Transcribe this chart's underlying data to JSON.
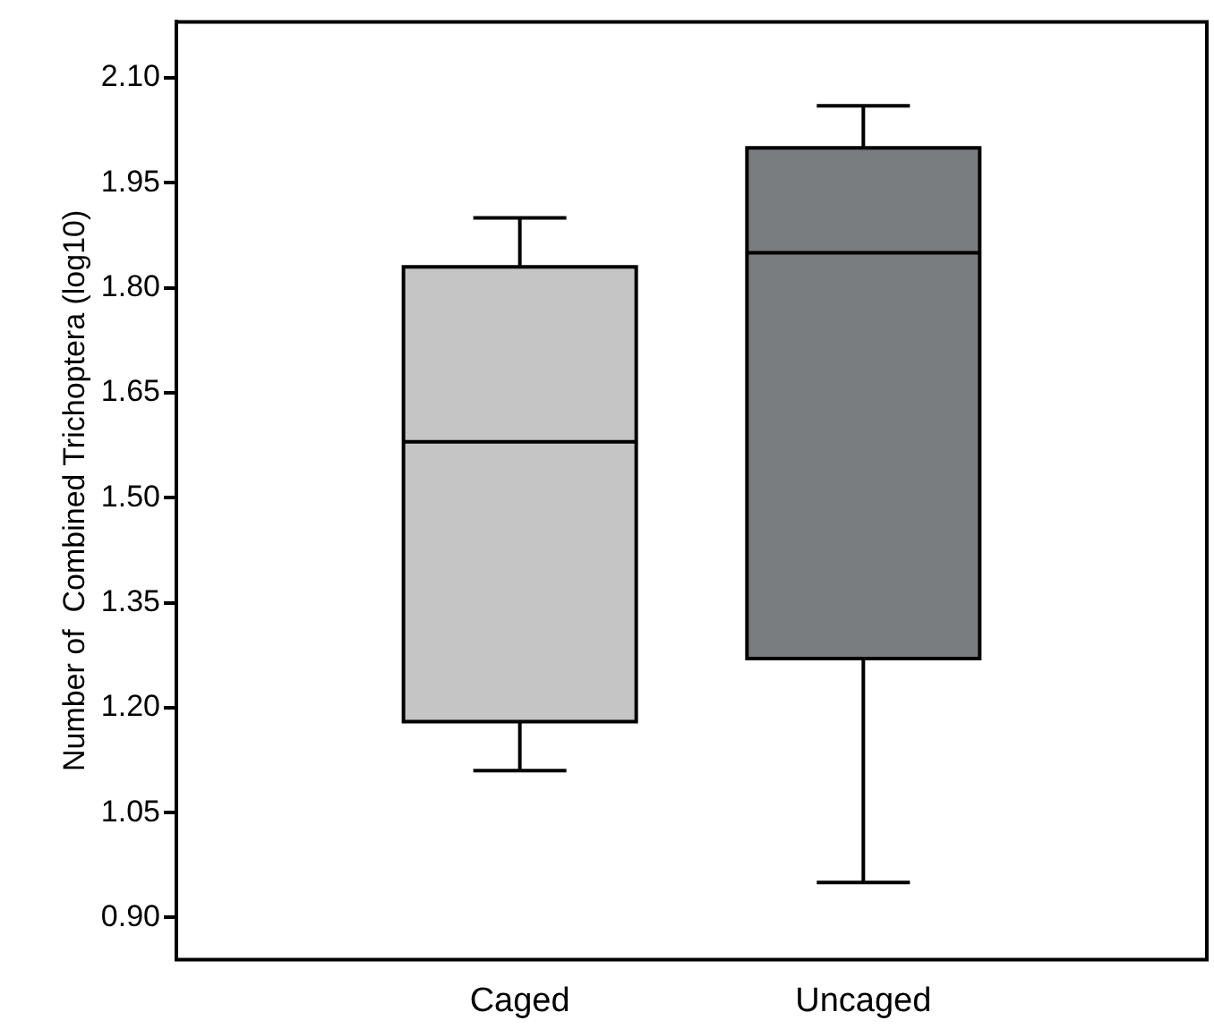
{
  "chart_data": {
    "type": "box",
    "ylabel": "Number of  Combined Trichoptera (log10)",
    "categories": [
      "Caged",
      "Uncaged"
    ],
    "colors": [
      "#c4c5c4",
      "#7a7d80"
    ],
    "boxes": [
      {
        "low": 1.11,
        "q1": 1.18,
        "median": 1.58,
        "q3": 1.83,
        "high": 1.9
      },
      {
        "low": 0.95,
        "q1": 1.27,
        "median": 1.85,
        "q3": 2.0,
        "high": 2.06
      }
    ],
    "ylim": [
      0.84,
      2.18
    ],
    "yticks": [
      {
        "value": 0.9,
        "label": "0.90"
      },
      {
        "value": 1.05,
        "label": "1.05"
      },
      {
        "value": 1.2,
        "label": "1.20"
      },
      {
        "value": 1.35,
        "label": "1.35"
      },
      {
        "value": 1.5,
        "label": "1.50"
      },
      {
        "value": 1.65,
        "label": "1.65"
      },
      {
        "value": 1.8,
        "label": "1.80"
      },
      {
        "value": 1.95,
        "label": "1.95"
      },
      {
        "value": 2.1,
        "label": "2.10"
      }
    ],
    "grid": false,
    "legend": false
  }
}
